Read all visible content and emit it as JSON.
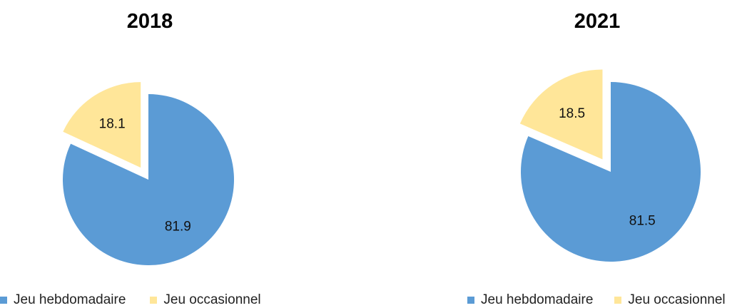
{
  "chart_data": [
    {
      "type": "pie",
      "title": "2018",
      "slices": [
        {
          "label": "Jeu hebdomadaire",
          "value": 81.9,
          "color": "#5B9BD5"
        },
        {
          "label": "Jeu occasionnel",
          "value": 18.1,
          "color": "#FFE699"
        }
      ],
      "exploded": "Jeu occasionnel",
      "legend": "bottom"
    },
    {
      "type": "pie",
      "title": "2021",
      "slices": [
        {
          "label": "Jeu hebdomadaire",
          "value": 81.5,
          "color": "#5B9BD5"
        },
        {
          "label": "Jeu occasionnel",
          "value": 18.5,
          "color": "#FFE699"
        }
      ],
      "exploded": "Jeu occasionnel",
      "legend": "bottom"
    }
  ]
}
